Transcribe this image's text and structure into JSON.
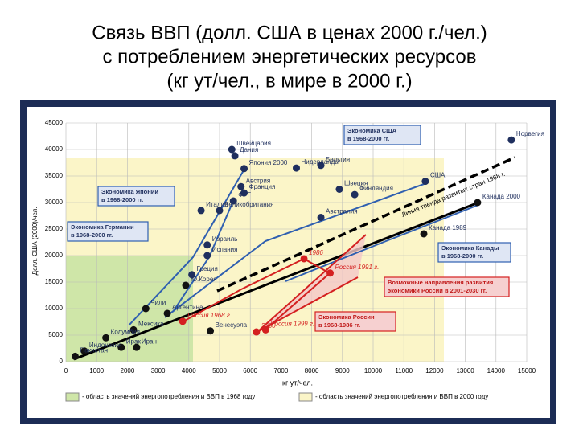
{
  "chart_data": {
    "type": "scatter",
    "title": [
      "Связь ВВП (долл. США в ценах 2000 г./чел.)",
      "с потреблением  энергетических ресурсов",
      "(кг ут/чел., в мире в 2000 г.)"
    ],
    "y_label": "Долл. США (2000)/чел.",
    "x_label": "кг ут/чел.",
    "xlim": [
      0,
      15000
    ],
    "xticks": [
      0,
      1000,
      2000,
      3000,
      4000,
      5000,
      6000,
      7000,
      8000,
      9000,
      10000,
      11000,
      12000,
      13000,
      14000,
      15000
    ],
    "ylim": [
      0,
      45000
    ],
    "yticks": [
      0,
      5000,
      10000,
      15000,
      20000,
      25000,
      30000,
      35000,
      40000,
      45000
    ],
    "grid": true,
    "groups": [
      {
        "color": "#1f2f5e",
        "points": [
          {
            "label": "Норвегия",
            "x": 14500,
            "y": 41800
          },
          {
            "label": "Швейцария",
            "x": 5400,
            "y": 40000
          },
          {
            "label": "Дания",
            "x": 5500,
            "y": 38800
          },
          {
            "label": "Япония 2000",
            "x": 5800,
            "y": 36400
          },
          {
            "label": "Австрия",
            "x": 5700,
            "y": 33000
          },
          {
            "label": "Франция",
            "x": 5800,
            "y": 31800
          },
          {
            "label": "ФРГ",
            "x": 5450,
            "y": 30300
          },
          {
            "label": "Бельгия",
            "x": 8300,
            "y": 37000
          },
          {
            "label": "Нидерланды",
            "x": 7500,
            "y": 36500
          },
          {
            "label": "Швеция",
            "x": 8900,
            "y": 32500
          },
          {
            "label": "Финляндия",
            "x": 9400,
            "y": 31500
          },
          {
            "label": "США",
            "x": 11700,
            "y": 34000
          },
          {
            "label": "Австралия",
            "x": 8300,
            "y": 27200
          },
          {
            "label": "Италия",
            "x": 4400,
            "y": 28500
          },
          {
            "label": "Великобритания",
            "x": 5000,
            "y": 28500
          },
          {
            "label": "Израиль",
            "x": 4600,
            "y": 22000
          },
          {
            "label": "Испания",
            "x": 4600,
            "y": 20000
          },
          {
            "label": "Греция",
            "x": 4100,
            "y": 16400
          }
        ]
      },
      {
        "color": "#111111",
        "points": [
          {
            "label": "Канада 2000",
            "x": 13400,
            "y": 30000
          },
          {
            "label": "Канада 1989",
            "x": 11650,
            "y": 24100
          },
          {
            "label": "Ю.Корея",
            "x": 3900,
            "y": 14400
          },
          {
            "label": "Аргентина",
            "x": 3300,
            "y": 9100
          },
          {
            "label": "Чили",
            "x": 2600,
            "y": 10000
          },
          {
            "label": "Мексика",
            "x": 2200,
            "y": 6000
          },
          {
            "label": "Колумбия",
            "x": 1300,
            "y": 4500
          },
          {
            "label": "Ирак",
            "x": 1800,
            "y": 2700
          },
          {
            "label": "Иран",
            "x": 2300,
            "y": 2700
          },
          {
            "label": "Венесуэла",
            "x": 4700,
            "y": 5800
          },
          {
            "label": "Индонезия",
            "x": 600,
            "y": 2000
          },
          {
            "label": "Пакистан",
            "x": 300,
            "y": 1000
          }
        ]
      },
      {
        "color": "#d42020",
        "points": [
          {
            "label": "Россия 1968 г.",
            "x": 3800,
            "y": 7600
          },
          {
            "label": "1986",
            "x": 7750,
            "y": 19400
          },
          {
            "label": "Россия 1991 г.",
            "x": 8600,
            "y": 16700
          },
          {
            "label": "2000",
            "x": 6200,
            "y": 5600
          },
          {
            "label": "Россия 1999 г.",
            "x": 6500,
            "y": 6000
          }
        ]
      }
    ],
    "annotations": [
      {
        "lines": [
          "Экономика США",
          "в 1968-2000 гг."
        ]
      },
      {
        "lines": [
          "Экономика Японии",
          "в 1968-2000 гг."
        ]
      },
      {
        "lines": [
          "Экономика Германии",
          "в 1968-2000 гг."
        ]
      },
      {
        "lines": [
          "Экономика Канады",
          "в 1968-2000 гг."
        ]
      },
      {
        "lines": [
          "Возможные направления развития",
          "экономики России в 2001-2030 гг."
        ]
      },
      {
        "lines": [
          "Экономика России",
          "в 1968-1986 гг."
        ]
      }
    ],
    "trend_label": "Линия тренда развитых стран 1968 г.",
    "legend": [
      "- область значений энергопотребления и ВВП в 1968 году",
      "- область значений энергопотребления и ВВП в 2000 году"
    ]
  }
}
